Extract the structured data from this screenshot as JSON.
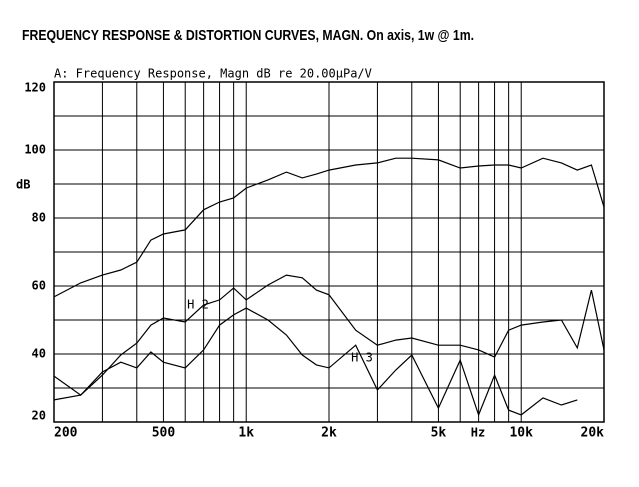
{
  "chart_data": {
    "type": "line",
    "title": "FREQUENCY RESPONSE & DISTORTION CURVES, MAGN. On axis, 1w @ 1m.",
    "subtitle": "A: Frequency Response, Magn dB re 20.00µPa/V",
    "y_label": "dB",
    "x_label": "Hz",
    "xscale": "log",
    "grid": true,
    "x": [
      200,
      250,
      300,
      350,
      400,
      450,
      500,
      600,
      700,
      800,
      900,
      1000,
      1200,
      1400,
      1600,
      1800,
      2000,
      2500,
      3000,
      3500,
      4000,
      5000,
      6000,
      7000,
      8000,
      9000,
      10000,
      12000,
      14000,
      16000,
      18000,
      20000
    ],
    "series": [
      {
        "color": "#000000",
        "values": [
          56.8,
          60.9,
          63.2,
          64.7,
          67,
          73.5,
          75.3,
          76.5,
          82.4,
          84.7,
          85.9,
          88.8,
          91.2,
          93.5,
          91.8,
          92.9,
          94.1,
          95.6,
          96.2,
          97.6,
          97.6,
          97.1,
          94.7,
          95.3,
          95.6,
          95.6,
          94.7,
          97.6,
          96.2,
          94.1,
          95.6,
          83.2
        ]
      },
      {
        "name": "H 2",
        "color": "#000000",
        "values": [
          33.5,
          27.9,
          33.8,
          39.7,
          43.2,
          48.5,
          50.6,
          49.4,
          54.4,
          55.9,
          59.4,
          55.9,
          60.3,
          63.2,
          62.4,
          58.8,
          57.4,
          47,
          42.6,
          44.1,
          44.7,
          42.6,
          42.6,
          41.2,
          39.1,
          47,
          48.5,
          49.4,
          50,
          41.8,
          58.8,
          41.2
        ]
      },
      {
        "name": "H 3",
        "color": "#000000",
        "values": [
          26.5,
          27.9,
          34.7,
          37.6,
          35.9,
          40.6,
          37.6,
          35.9,
          41.2,
          48.5,
          51.5,
          53.5,
          50,
          45.6,
          39.7,
          36.8,
          35.9,
          42.6,
          29.4,
          35.3,
          39.7,
          24.1,
          38.2,
          22.1,
          33.8,
          23.5,
          22.1,
          27.1,
          25,
          26.5,
          null,
          null
        ]
      }
    ],
    "xlim": [
      200,
      20000
    ],
    "xticks": [
      200,
      500,
      {
        "value": 1000,
        "label": "1k"
      },
      {
        "value": 2000,
        "label": "2k"
      },
      {
        "value": 5000,
        "label": "5k"
      },
      {
        "value": 10000,
        "label": "10k"
      },
      {
        "value": 20000,
        "label": "20k"
      }
    ],
    "xminorticks": [
      300,
      400,
      600,
      700,
      800,
      900,
      3000,
      4000,
      6000,
      7000,
      8000,
      9000
    ],
    "ylim": [
      20,
      120
    ],
    "yticks": [
      20,
      40,
      60,
      80,
      100,
      120
    ],
    "yminorticks": [
      30,
      50,
      70,
      90,
      110
    ]
  }
}
